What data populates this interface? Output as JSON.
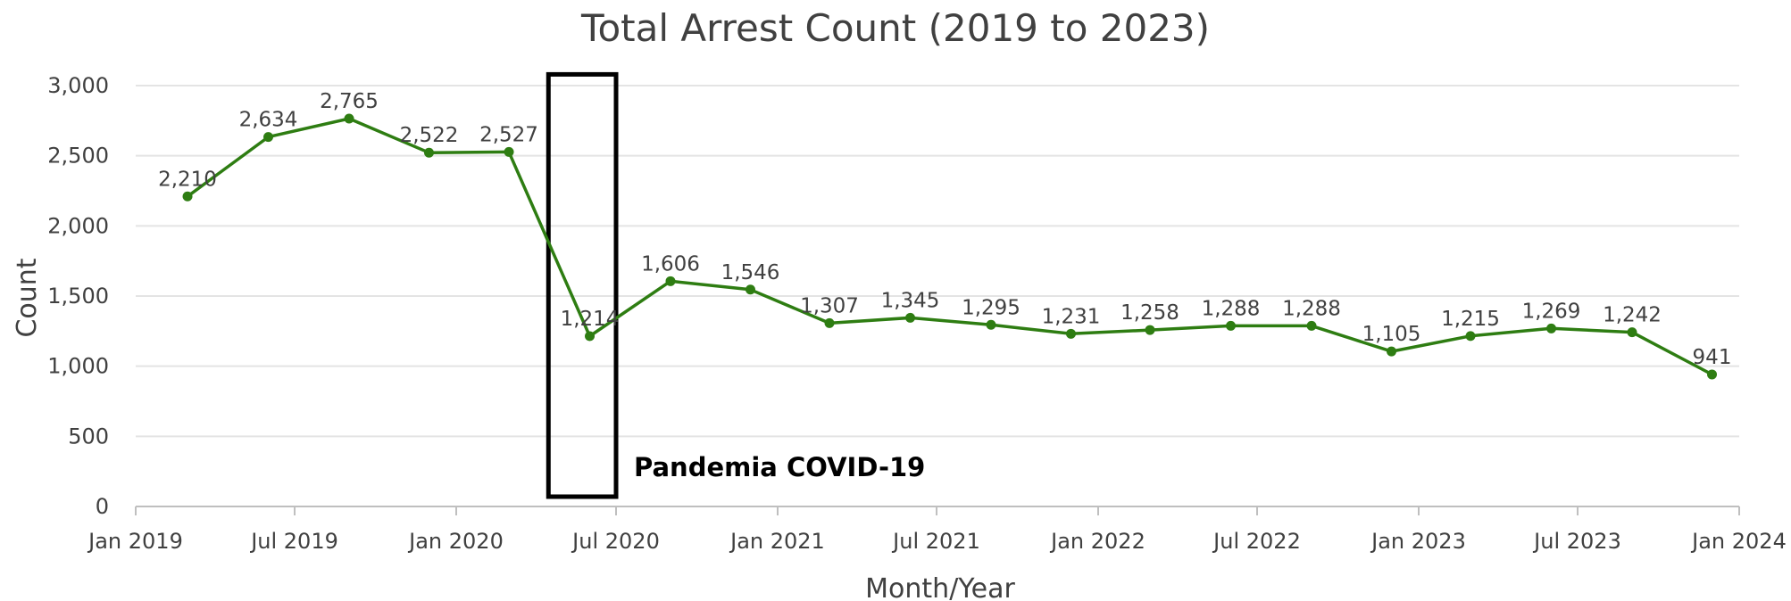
{
  "chart_data": {
    "type": "line",
    "title": "Total Arrest Count (2019 to 2023)",
    "xlabel": "Month/Year",
    "ylabel": "Count",
    "x_ticks": [
      "Jan 2019",
      "Jul 2019",
      "Jan 2020",
      "Jul 2020",
      "Jan 2021",
      "Jul 2021",
      "Jan 2022",
      "Jul 2022",
      "Jan 2023",
      "Jul 2023",
      "Jan 2024"
    ],
    "x_tick_dates": [
      "2019-01-01",
      "2019-07-01",
      "2020-01-01",
      "2020-07-01",
      "2021-01-01",
      "2021-07-01",
      "2022-01-01",
      "2022-07-01",
      "2023-01-01",
      "2023-07-01",
      "2024-01-01"
    ],
    "xlim": [
      "2019-01-01",
      "2024-01-01"
    ],
    "ylim": [
      0,
      3000
    ],
    "y_ticks": [
      0,
      500,
      1000,
      1500,
      2000,
      2500,
      3000
    ],
    "y_tick_labels": [
      "0",
      "500",
      "1,000",
      "1,500",
      "2,000",
      "2,500",
      "3,000"
    ],
    "grid": true,
    "line_color": "#2e7d12",
    "series": [
      {
        "x": [
          "2019-03-01",
          "2019-06-01",
          "2019-09-01",
          "2019-12-01",
          "2020-03-01",
          "2020-06-01",
          "2020-09-01",
          "2020-12-01",
          "2021-03-01",
          "2021-06-01",
          "2021-09-01",
          "2021-12-01",
          "2022-03-01",
          "2022-06-01",
          "2022-09-01",
          "2022-12-01",
          "2023-03-01",
          "2023-06-01",
          "2023-09-01",
          "2023-12-01"
        ],
        "values": [
          2210,
          2634,
          2765,
          2522,
          2527,
          1214,
          1606,
          1546,
          1307,
          1345,
          1295,
          1231,
          1258,
          1288,
          1288,
          1105,
          1215,
          1269,
          1242,
          941
        ],
        "labels": [
          "2,210",
          "2,634",
          "2,765",
          "2,522",
          "2,527",
          "1,214",
          "1,606",
          "1,546",
          "1,307",
          "1,345",
          "1,295",
          "1,231",
          "1,258",
          "1,288",
          "1,288",
          "1,105",
          "1,215",
          "1,269",
          "1,242",
          "941"
        ]
      }
    ],
    "annotation": {
      "text": "Pandemia COVID-19",
      "x_range": [
        "2020-04-15",
        "2020-07-01"
      ],
      "y_range": [
        70,
        3080
      ]
    }
  }
}
